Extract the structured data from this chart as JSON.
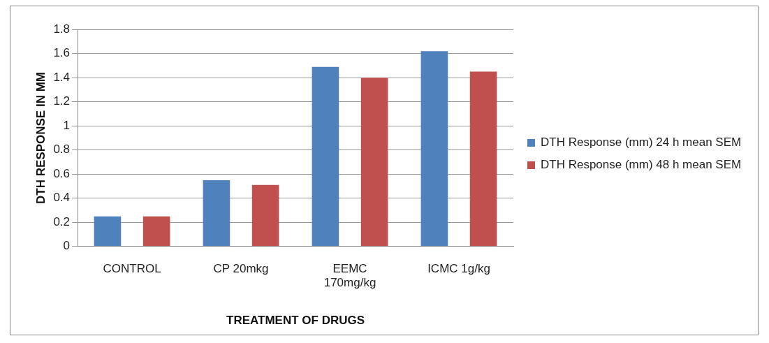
{
  "chart_data": {
    "type": "bar",
    "xlabel": "TREATMENT OF DRUGS",
    "ylabel": "DTH RESPONSE IN MM",
    "categories": [
      "CONTROL",
      "CP 20mkg",
      "EEMC 170mg/kg",
      "ICMC 1g/kg"
    ],
    "series": [
      {
        "name": "DTH Response (mm) 24 h mean SEM",
        "color": "#4f81bd",
        "values": [
          0.25,
          0.55,
          1.49,
          1.62
        ]
      },
      {
        "name": "DTH Response (mm) 48 h mean SEM",
        "color": "#c0504d",
        "values": [
          0.25,
          0.51,
          1.4,
          1.45
        ]
      }
    ],
    "ylim": [
      0,
      1.8
    ],
    "yticks": [
      0,
      0.2,
      0.4,
      0.6,
      0.8,
      1,
      1.2,
      1.4,
      1.6,
      1.8
    ],
    "grid": "y",
    "legend": "right"
  }
}
